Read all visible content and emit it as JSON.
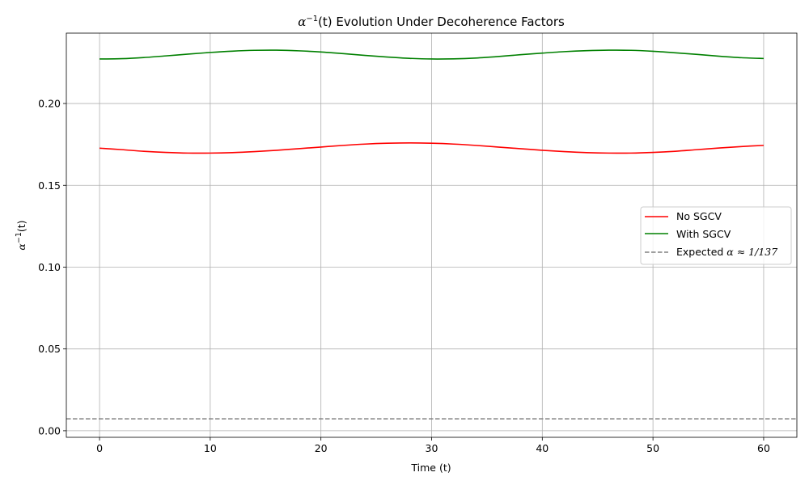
{
  "chart_data": {
    "type": "line",
    "title": {
      "prefix": "α",
      "sup": "−1",
      "suffix": "(t) Evolution Under Decoherence Factors"
    },
    "xlabel": "Time (t)",
    "ylabel": {
      "prefix": "α",
      "sup": "−1",
      "suffix": "(t)"
    },
    "xlim": [
      -3,
      63
    ],
    "ylim": [
      -0.004,
      0.243
    ],
    "xticks": [
      0,
      10,
      20,
      30,
      40,
      50,
      60
    ],
    "xtick_labels": [
      "0",
      "10",
      "20",
      "30",
      "40",
      "50",
      "60"
    ],
    "yticks": [
      0.0,
      0.05,
      0.1,
      0.15,
      0.2
    ],
    "ytick_labels": [
      "0.00",
      "0.05",
      "0.10",
      "0.15",
      "0.20"
    ],
    "grid": true,
    "legend_position": "right",
    "x": [
      0,
      2,
      4,
      6,
      8,
      10,
      12,
      14,
      16,
      18,
      20,
      22,
      24,
      26,
      28,
      30,
      32,
      34,
      36,
      38,
      40,
      42,
      44,
      46,
      48,
      50,
      52,
      54,
      56,
      58,
      60
    ],
    "series": [
      {
        "name": "No SGCV",
        "color": "#ff0000",
        "dash": "solid",
        "values": [
          0.1727,
          0.1718,
          0.1708,
          0.1701,
          0.1697,
          0.1697,
          0.17,
          0.1706,
          0.1714,
          0.1724,
          0.1734,
          0.1744,
          0.1752,
          0.1757,
          0.1759,
          0.1757,
          0.1752,
          0.1744,
          0.1734,
          0.1724,
          0.1714,
          0.1706,
          0.17,
          0.1697,
          0.1697,
          0.1701,
          0.1708,
          0.1718,
          0.1728,
          0.1737,
          0.1744
        ]
      },
      {
        "name": "With SGCV",
        "color": "#008000",
        "dash": "solid",
        "values": [
          0.2272,
          0.2274,
          0.2281,
          0.2291,
          0.2302,
          0.2312,
          0.232,
          0.2325,
          0.2326,
          0.2322,
          0.2315,
          0.2305,
          0.2294,
          0.2284,
          0.2276,
          0.2272,
          0.2273,
          0.2278,
          0.2287,
          0.2298,
          0.2308,
          0.2317,
          0.2323,
          0.2326,
          0.2325,
          0.2319,
          0.231,
          0.23,
          0.2289,
          0.228,
          0.2275
        ]
      }
    ],
    "reference_line": {
      "name": {
        "prefix": "Expected ",
        "math": "α ≈ 1/137"
      },
      "color": "#808080",
      "dash": "dashed",
      "y": 0.0073
    }
  }
}
